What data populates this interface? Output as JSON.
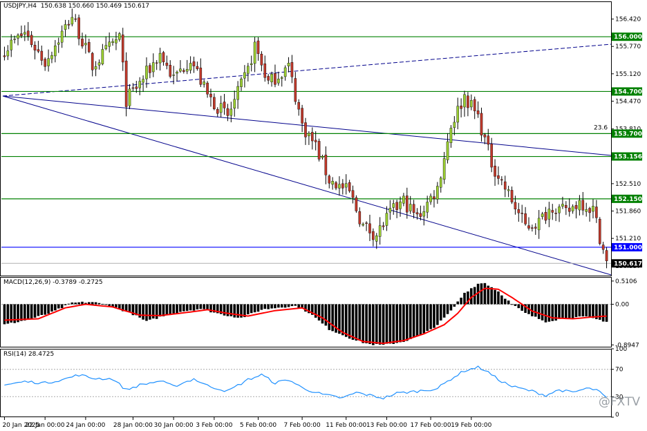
{
  "header": {
    "symbol": "USDJPY,H4",
    "quote": "150.638 150.660 150.469 150.617"
  },
  "watermark": "@FXTV",
  "colors": {
    "bull": "#9acd32",
    "bear": "#c0392b",
    "hline": "#008000",
    "blue": "#0000ff",
    "channel": "#00008b",
    "signal": "#ff0000",
    "rsi": "#1e90ff"
  },
  "chart_data": [
    {
      "type": "candlestick",
      "pane": "price",
      "y_ticks": [
        "156.420",
        "155.770",
        "155.120",
        "154.470",
        "153.810",
        "152.510",
        "151.860",
        "151.210",
        "150.557"
      ],
      "ylim": [
        150.31,
        156.84
      ],
      "x_labels": [
        "20 Jan 2025",
        "22 Jan 00:00",
        "24 Jan 00:00",
        "28 Jan 00:00",
        "30 Jan 00:00",
        "3 Feb 00:00",
        "5 Feb 00:00",
        "7 Feb 00:00",
        "11 Feb 00:00",
        "13 Feb 00:00",
        "17 Feb 00:00",
        "19 Feb 00:00"
      ],
      "price_tags": [
        {
          "label": "156.000",
          "value": 156.0,
          "color": "#008000"
        },
        {
          "label": "154.700",
          "value": 154.7,
          "color": "#008000"
        },
        {
          "label": "153.700",
          "value": 153.7,
          "color": "#008000"
        },
        {
          "label": "153.156",
          "value": 153.156,
          "color": "#008000"
        },
        {
          "label": "152.150",
          "value": 152.15,
          "color": "#008000"
        },
        {
          "label": "151.000",
          "value": 151.0,
          "color": "#0000ff"
        },
        {
          "label": "150.617",
          "value": 150.617,
          "color": "#000000"
        }
      ],
      "fib_label": "23.6",
      "waypoints": [
        [
          0,
          155.7
        ],
        [
          6,
          156.1
        ],
        [
          12,
          155.4
        ],
        [
          20,
          156.5
        ],
        [
          26,
          155.3
        ],
        [
          34,
          156.0
        ],
        [
          36,
          154.5
        ],
        [
          40,
          154.9
        ],
        [
          46,
          155.6
        ],
        [
          50,
          155.0
        ],
        [
          55,
          155.5
        ],
        [
          60,
          154.6
        ],
        [
          66,
          154.1
        ],
        [
          72,
          155.2
        ],
        [
          74,
          155.8
        ],
        [
          78,
          154.9
        ],
        [
          84,
          155.3
        ],
        [
          88,
          153.9
        ],
        [
          92,
          153.4
        ],
        [
          96,
          152.6
        ],
        [
          102,
          152.3
        ],
        [
          106,
          151.5
        ],
        [
          110,
          151.3
        ],
        [
          114,
          151.8
        ],
        [
          118,
          152.1
        ],
        [
          122,
          151.7
        ],
        [
          128,
          152.4
        ],
        [
          132,
          153.9
        ],
        [
          136,
          154.6
        ],
        [
          140,
          154.1
        ],
        [
          144,
          153.0
        ],
        [
          148,
          152.4
        ],
        [
          154,
          151.5
        ],
        [
          158,
          151.6
        ],
        [
          162,
          152.0
        ],
        [
          166,
          151.8
        ],
        [
          170,
          152.1
        ],
        [
          174,
          151.9
        ],
        [
          178,
          150.62
        ]
      ]
    },
    {
      "type": "bar",
      "pane": "MACD",
      "title": "MACD(12,26,9) -0.3789 -0.2725",
      "y_ticks": [
        "0.5106",
        "0.00",
        "-0.8947"
      ],
      "ylim": [
        -0.95,
        0.6
      ],
      "histogram_waypoints": [
        [
          0,
          -0.45
        ],
        [
          8,
          -0.32
        ],
        [
          14,
          -0.18
        ],
        [
          20,
          0.03
        ],
        [
          26,
          0.05
        ],
        [
          32,
          -0.05
        ],
        [
          38,
          -0.22
        ],
        [
          42,
          -0.38
        ],
        [
          46,
          -0.28
        ],
        [
          52,
          -0.16
        ],
        [
          58,
          -0.1
        ],
        [
          64,
          -0.22
        ],
        [
          70,
          -0.3
        ],
        [
          76,
          -0.12
        ],
        [
          82,
          -0.06
        ],
        [
          86,
          -0.04
        ],
        [
          90,
          -0.18
        ],
        [
          96,
          -0.55
        ],
        [
          104,
          -0.8
        ],
        [
          108,
          -0.88
        ],
        [
          112,
          -0.9
        ],
        [
          118,
          -0.82
        ],
        [
          124,
          -0.65
        ],
        [
          128,
          -0.45
        ],
        [
          132,
          -0.15
        ],
        [
          136,
          0.25
        ],
        [
          140,
          0.45
        ],
        [
          142,
          0.47
        ],
        [
          146,
          0.28
        ],
        [
          150,
          0.0
        ],
        [
          154,
          -0.2
        ],
        [
          160,
          -0.38
        ],
        [
          166,
          -0.3
        ],
        [
          172,
          -0.28
        ],
        [
          178,
          -0.38
        ]
      ],
      "signal_waypoints": [
        [
          0,
          -0.35
        ],
        [
          10,
          -0.32
        ],
        [
          18,
          -0.08
        ],
        [
          24,
          0.0
        ],
        [
          32,
          -0.06
        ],
        [
          40,
          -0.24
        ],
        [
          46,
          -0.25
        ],
        [
          54,
          -0.18
        ],
        [
          60,
          -0.12
        ],
        [
          66,
          -0.2
        ],
        [
          72,
          -0.26
        ],
        [
          80,
          -0.14
        ],
        [
          88,
          -0.08
        ],
        [
          94,
          -0.3
        ],
        [
          100,
          -0.62
        ],
        [
          106,
          -0.82
        ],
        [
          112,
          -0.86
        ],
        [
          118,
          -0.8
        ],
        [
          124,
          -0.65
        ],
        [
          130,
          -0.45
        ],
        [
          134,
          -0.2
        ],
        [
          138,
          0.15
        ],
        [
          142,
          0.35
        ],
        [
          146,
          0.33
        ],
        [
          150,
          0.15
        ],
        [
          156,
          -0.15
        ],
        [
          162,
          -0.3
        ],
        [
          168,
          -0.32
        ],
        [
          174,
          -0.28
        ],
        [
          178,
          -0.26
        ]
      ]
    },
    {
      "type": "line",
      "pane": "RSI",
      "title": "RSI(14) 28.4725",
      "y_ticks": [
        "100",
        "70",
        "30",
        "0"
      ],
      "ylim": [
        0,
        100
      ],
      "waypoints": [
        [
          0,
          47
        ],
        [
          6,
          52
        ],
        [
          12,
          50
        ],
        [
          18,
          56
        ],
        [
          22,
          62
        ],
        [
          26,
          57
        ],
        [
          32,
          56
        ],
        [
          36,
          40
        ],
        [
          40,
          47
        ],
        [
          46,
          53
        ],
        [
          50,
          45
        ],
        [
          56,
          56
        ],
        [
          60,
          46
        ],
        [
          66,
          38
        ],
        [
          72,
          55
        ],
        [
          76,
          62
        ],
        [
          80,
          50
        ],
        [
          84,
          55
        ],
        [
          88,
          43
        ],
        [
          94,
          33
        ],
        [
          100,
          28
        ],
        [
          104,
          36
        ],
        [
          108,
          32
        ],
        [
          112,
          28
        ],
        [
          116,
          35
        ],
        [
          122,
          38
        ],
        [
          128,
          42
        ],
        [
          132,
          56
        ],
        [
          136,
          68
        ],
        [
          140,
          73
        ],
        [
          142,
          69
        ],
        [
          146,
          55
        ],
        [
          150,
          45
        ],
        [
          156,
          38
        ],
        [
          160,
          32
        ],
        [
          164,
          40
        ],
        [
          168,
          36
        ],
        [
          172,
          42
        ],
        [
          175,
          40
        ],
        [
          178,
          28
        ]
      ]
    }
  ]
}
